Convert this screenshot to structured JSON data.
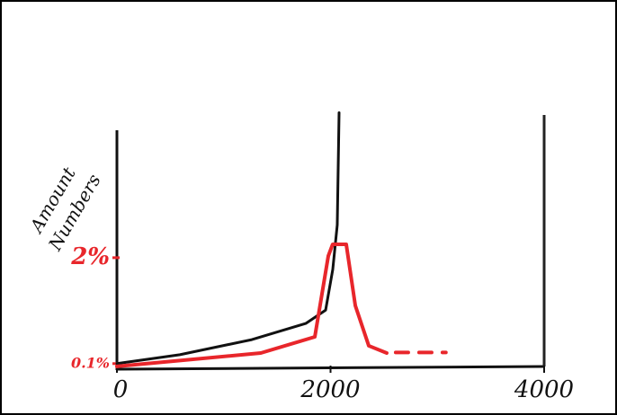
{
  "chart_data": {
    "type": "line",
    "ylabel": [
      "Amount",
      "Numbers"
    ],
    "xlim": [
      0,
      4000
    ],
    "ylim": [
      0,
      6.3
    ],
    "xticks": [
      0,
      2000,
      4000
    ],
    "yticks": [
      {
        "value": 0.1,
        "label": "0.1%"
      },
      {
        "value": 2,
        "label": "2%"
      }
    ],
    "ytick_color": "#e8262b",
    "series": [
      {
        "color": "#111111",
        "style": "solid",
        "x": [
          0,
          589,
          1263,
          1768,
          1954,
          2021,
          2063,
          2080
        ],
        "values": [
          0.1,
          0.26,
          0.53,
          0.82,
          1.06,
          1.79,
          2.59,
          4.6
        ]
      },
      {
        "color": "#e8262b",
        "style": "solid",
        "x": [
          0,
          1347,
          1853,
          1979,
          2020,
          2147,
          2232,
          2358,
          2526
        ],
        "values": [
          0.05,
          0.29,
          0.58,
          2.03,
          2.24,
          2.24,
          1.14,
          0.42,
          0.29
        ]
      },
      {
        "color": "#e8262b",
        "style": "dashed",
        "x": [
          2610,
          3080
        ],
        "values": [
          0.3,
          0.3
        ]
      }
    ]
  }
}
